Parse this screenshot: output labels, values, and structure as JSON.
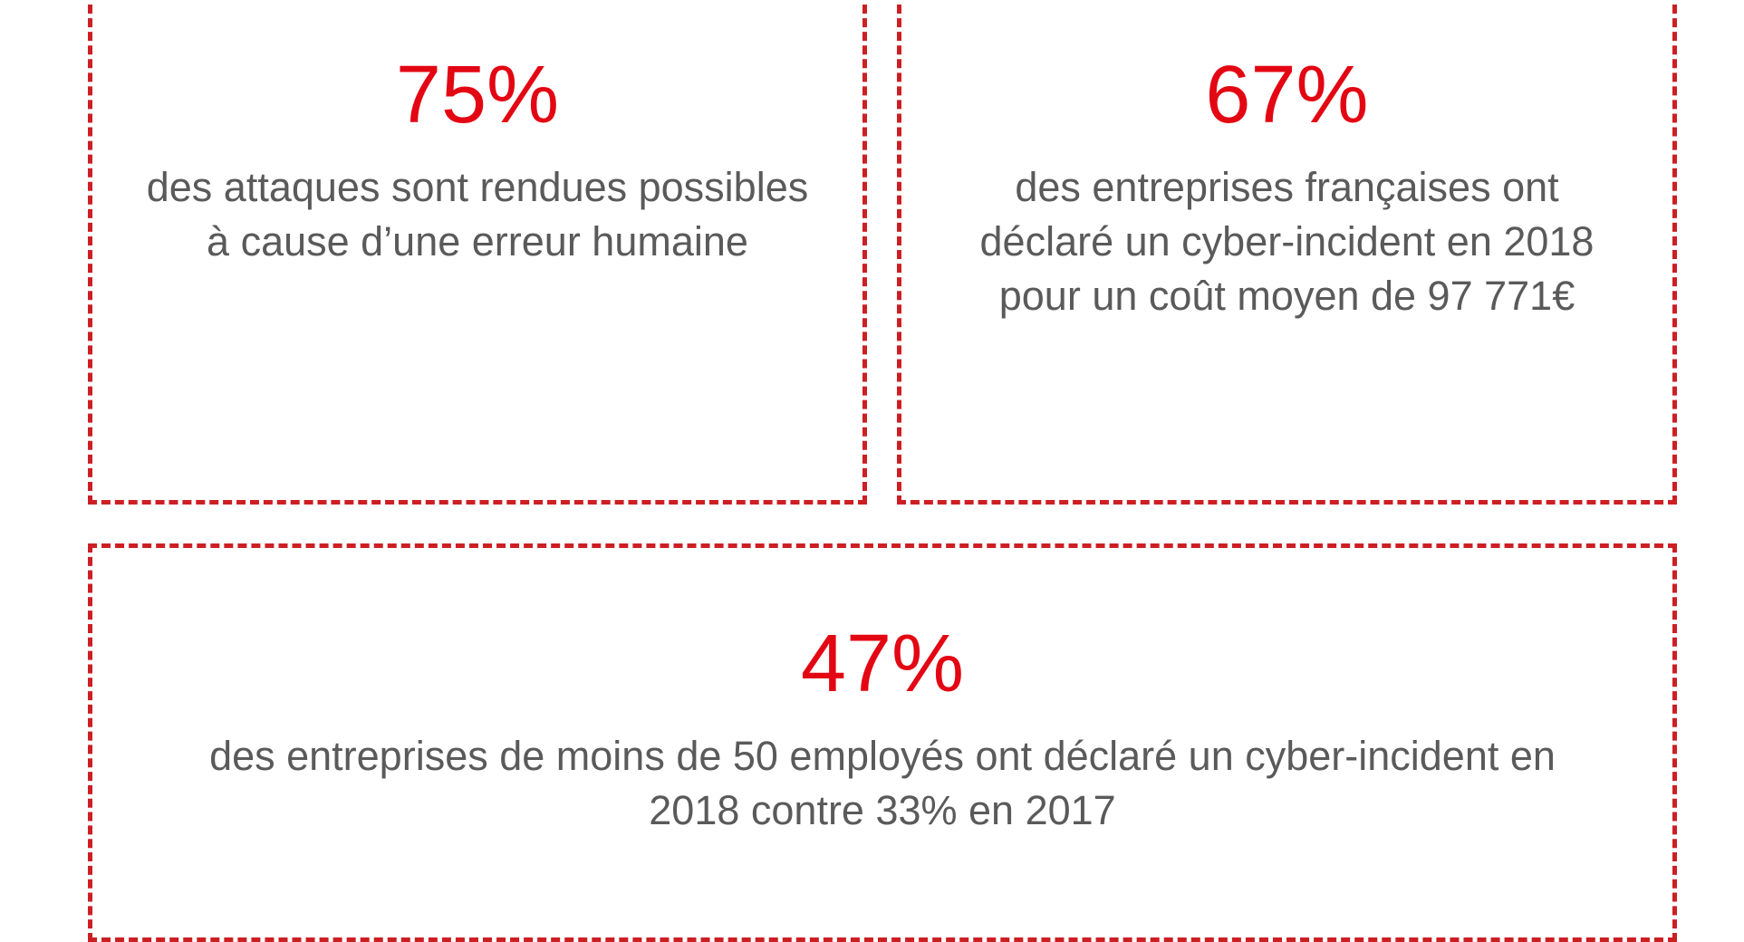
{
  "stats": [
    {
      "value": "75%",
      "lines": [
        "des attaques sont rendues possibles",
        "à cause d’une erreur humaine"
      ]
    },
    {
      "value": "67%",
      "lines": [
        "des entreprises françaises ont",
        "déclaré un cyber-incident en 2018",
        "pour un coût moyen de 97 771€"
      ]
    },
    {
      "value": "47%",
      "lines": [
        "des entreprises de moins de 50 employés ont déclaré un cyber-incident en",
        "2018 contre 33% en 2017"
      ]
    }
  ],
  "colors": {
    "accent": "#e30613",
    "border": "#cc1f24",
    "text": "#5a5a5a"
  }
}
